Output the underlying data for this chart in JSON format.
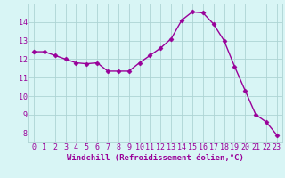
{
  "x": [
    0,
    1,
    2,
    3,
    4,
    5,
    6,
    7,
    8,
    9,
    10,
    11,
    12,
    13,
    14,
    15,
    16,
    17,
    18,
    19,
    20,
    21,
    22,
    23
  ],
  "y": [
    12.4,
    12.4,
    12.2,
    12.0,
    11.8,
    11.75,
    11.8,
    11.35,
    11.35,
    11.35,
    11.8,
    12.2,
    12.6,
    13.1,
    14.1,
    14.55,
    14.5,
    13.9,
    13.0,
    11.6,
    10.3,
    9.0,
    8.6,
    7.9
  ],
  "line_color": "#990099",
  "marker": "D",
  "markersize": 2.5,
  "linewidth": 1.0,
  "bg_color": "#d8f5f5",
  "grid_color": "#aed4d4",
  "xlabel": "Windchill (Refroidissement éolien,°C)",
  "xlabel_fontsize": 6.5,
  "tick_fontsize": 6.0,
  "xlim": [
    -0.5,
    23.5
  ],
  "ylim": [
    7.5,
    15.0
  ],
  "yticks": [
    8,
    9,
    10,
    11,
    12,
    13,
    14
  ],
  "xticks": [
    0,
    1,
    2,
    3,
    4,
    5,
    6,
    7,
    8,
    9,
    10,
    11,
    12,
    13,
    14,
    15,
    16,
    17,
    18,
    19,
    20,
    21,
    22,
    23
  ]
}
